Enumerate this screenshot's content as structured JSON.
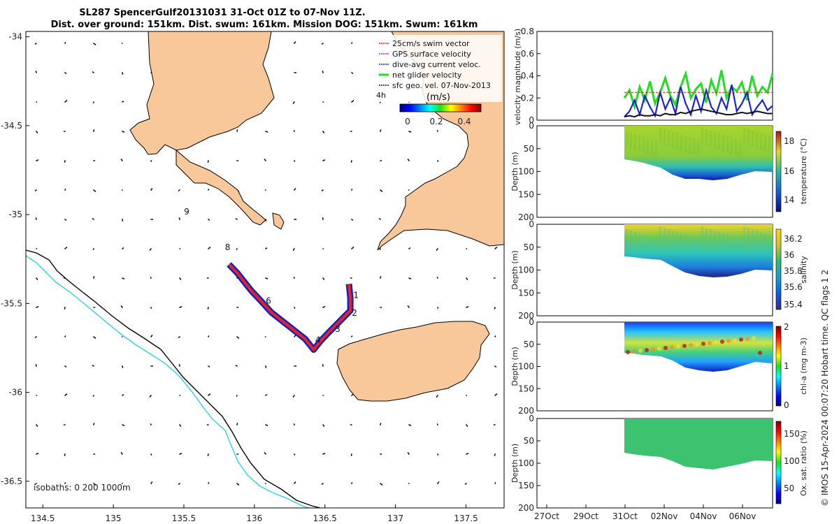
{
  "title_lines": [
    "SL287 SpencerGulf20131031 31-Oct 01Z to 07-Nov 11Z.",
    "Dist. over ground: 151km. Dist. swum: 161km. Mission DOG: 151km. Swum: 161km"
  ],
  "footer": "© IMOS 15-Apr-2024 00:07:20 Hobart time. QC flags 1  2",
  "colors": {
    "land": "#F8C89A",
    "isobath200": "#000000",
    "isobath1000": "#27D4E8",
    "track_red": "#E8231A",
    "track_blue": "#1020D0",
    "track_green": "#22DD22",
    "vel_green": "#22DD22",
    "vel_blue": "#1A22D8",
    "vel_red": "#D01010",
    "vel_black": "#111111"
  },
  "chart_data": [
    {
      "type": "map",
      "xticks": [
        134.5,
        135,
        135.5,
        136,
        136.5,
        137,
        137.5
      ],
      "xtick_labels": [
        "134.5",
        "135",
        "135.5",
        "136",
        "136.5",
        "137",
        "137.5"
      ],
      "yticks": [
        -34,
        -34.5,
        -35,
        -35.5,
        -36,
        -36.5
      ],
      "ytick_labels": [
        "-34",
        "-34.5",
        "-35",
        "-35.5",
        "-36",
        "-36.5"
      ],
      "xlim": [
        134.38,
        137.77
      ],
      "ylim": [
        -36.65,
        -33.97
      ],
      "legend": [
        {
          "label": "25cm/s swim vector",
          "color": "#E8231A"
        },
        {
          "label": "GPS surface velocity",
          "color": "#D020D0"
        },
        {
          "label": "dive-avg current veloc.",
          "color": "#1020D0"
        },
        {
          "label": "net glider velocity",
          "color": "#22DD22"
        },
        {
          "label": "sfc geo. vel. 07-Nov-2013",
          "color": "#111111"
        }
      ],
      "colorbar": {
        "label": "(m/s)",
        "range": [
          0,
          0.5
        ],
        "ticks": [
          "0",
          "0.2",
          "0.4"
        ]
      },
      "time_step_label": "4h",
      "isobaths_label": "isobaths: 0   200   1000m",
      "day_markers": [
        {
          "label": "9",
          "lon": 135.52,
          "lat": -35.0
        },
        {
          "label": "8",
          "lon": 135.81,
          "lat": -35.2
        },
        {
          "label": "1",
          "lon": 136.72,
          "lat": -35.47
        },
        {
          "label": "2",
          "lon": 136.71,
          "lat": -35.57
        },
        {
          "label": "3",
          "lon": 136.59,
          "lat": -35.66
        },
        {
          "label": "4",
          "lon": 136.45,
          "lat": -35.72
        },
        {
          "label": "6",
          "lon": 136.1,
          "lat": -35.5
        }
      ],
      "track": [
        [
          135.82,
          -35.28
        ],
        [
          135.88,
          -35.33
        ],
        [
          135.93,
          -35.38
        ],
        [
          135.98,
          -35.43
        ],
        [
          136.04,
          -35.48
        ],
        [
          136.12,
          -35.55
        ],
        [
          136.2,
          -35.6
        ],
        [
          136.28,
          -35.65
        ],
        [
          136.36,
          -35.7
        ],
        [
          136.42,
          -35.76
        ],
        [
          136.47,
          -35.71
        ],
        [
          136.53,
          -35.66
        ],
        [
          136.58,
          -35.62
        ],
        [
          136.63,
          -35.58
        ],
        [
          136.68,
          -35.54
        ],
        [
          136.68,
          -35.47
        ],
        [
          136.67,
          -35.39
        ]
      ]
    },
    {
      "type": "line",
      "ylabel": "velocity magnitude (m/s)",
      "ylim": [
        0,
        0.8
      ],
      "yticks": [
        "0",
        "0.2",
        "0.4",
        "0.6",
        "0.8"
      ],
      "series": [
        {
          "name": "net glider velocity",
          "values": [
            0.2,
            0.27,
            0.12,
            0.3,
            0.18,
            0.35,
            0.15,
            0.25,
            0.38,
            0.22,
            0.14,
            0.3,
            0.42,
            0.2,
            0.28,
            0.33,
            0.16,
            0.36,
            0.24,
            0.45,
            0.2,
            0.3,
            0.26,
            0.34,
            0.18,
            0.4,
            0.22,
            0.3,
            0.25,
            0.42
          ]
        },
        {
          "name": "dive-avg current veloc.",
          "values": [
            0.03,
            0.08,
            0.18,
            0.05,
            0.22,
            0.12,
            0.04,
            0.25,
            0.1,
            0.2,
            0.06,
            0.3,
            0.15,
            0.05,
            0.22,
            0.08,
            0.27,
            0.12,
            0.06,
            0.2,
            0.1,
            0.32,
            0.08,
            0.15,
            0.25,
            0.05,
            0.12,
            0.18,
            0.09,
            0.13
          ]
        },
        {
          "name": "25cm/s swim vector",
          "values": [
            0.25,
            0.25,
            0.25,
            0.25,
            0.25,
            0.25,
            0.25,
            0.25,
            0.25,
            0.25,
            0.25,
            0.25,
            0.25,
            0.25,
            0.25,
            0.25,
            0.25,
            0.25,
            0.25,
            0.25,
            0.25,
            0.25,
            0.25,
            0.25,
            0.25,
            0.25,
            0.25,
            0.25,
            0.25,
            0.25
          ]
        },
        {
          "name": "sfc geo. vel.",
          "values": [
            0.03,
            0.04,
            0.03,
            0.05,
            0.04,
            0.04,
            0.05,
            0.04,
            0.06,
            0.05,
            0.05,
            0.07,
            0.06,
            0.08,
            0.09,
            0.1,
            0.09,
            0.08,
            0.07,
            0.06,
            0.05,
            0.05,
            0.06,
            0.07,
            0.06,
            0.07,
            0.08,
            0.07,
            0.06,
            0.06
          ]
        }
      ]
    },
    {
      "type": "heatmap",
      "ylabel": "Depth (m)",
      "cbar_label": "temperature (°C)",
      "yticks": [
        "0",
        "50",
        "100",
        "150",
        "200"
      ],
      "cticks": [
        "18",
        "16",
        "14"
      ],
      "cmap": "parula"
    },
    {
      "type": "heatmap",
      "ylabel": "Depth (m)",
      "cbar_label": "salinity",
      "yticks": [
        "0",
        "50",
        "100",
        "150",
        "200"
      ],
      "cticks": [
        "36.2",
        "36",
        "35.8",
        "35.6",
        "35.4"
      ],
      "cmap": "parula"
    },
    {
      "type": "heatmap",
      "ylabel": "Depth (m)",
      "cbar_label": "chl-a (mg m-3)",
      "yticks": [
        "0",
        "50",
        "100",
        "150",
        "200"
      ],
      "cticks": [
        "2",
        "1",
        "0"
      ],
      "cmap": "jet"
    },
    {
      "type": "heatmap",
      "ylabel": "Depth (m)",
      "cbar_label": "Ox. sat. ratio (%)",
      "yticks": [
        "0",
        "50",
        "100",
        "150",
        "200"
      ],
      "cticks": [
        "150",
        "100",
        "50"
      ],
      "cmap": "jet"
    },
    {
      "type": "time_axis",
      "xtick_labels": [
        "27Oct",
        "29Oct",
        "31Oct",
        "02Nov",
        "04Nov",
        "06Nov"
      ]
    }
  ]
}
